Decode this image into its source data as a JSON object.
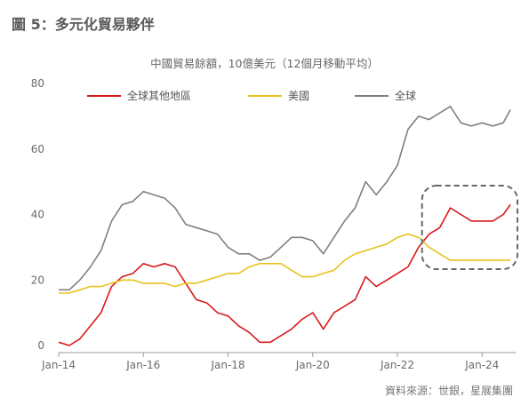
{
  "figure_title": "圖 5：多元化貿易夥伴",
  "source_note": "資料來源：世銀，星展集團",
  "chart_data": {
    "type": "line",
    "title": "中國貿易餘額，10億美元（12個月移動平均）",
    "xlabel": "",
    "ylabel": "",
    "ylim": [
      0,
      80
    ],
    "yticks": [
      0,
      20,
      40,
      60,
      80
    ],
    "xlim": [
      "2014-01",
      "2024-09"
    ],
    "xticks": [
      "Jan-14",
      "Jan-16",
      "Jan-18",
      "Jan-20",
      "Jan-22",
      "Jan-24"
    ],
    "grid": false,
    "legend_position": "top-left",
    "annotation": "dashed rounded box highlighting 2022-11 to 2024-09",
    "x": [
      "2014-01",
      "2014-04",
      "2014-07",
      "2014-10",
      "2015-01",
      "2015-04",
      "2015-07",
      "2015-10",
      "2016-01",
      "2016-04",
      "2016-07",
      "2016-10",
      "2017-01",
      "2017-04",
      "2017-07",
      "2017-10",
      "2018-01",
      "2018-04",
      "2018-07",
      "2018-10",
      "2019-01",
      "2019-04",
      "2019-07",
      "2019-10",
      "2020-01",
      "2020-04",
      "2020-07",
      "2020-10",
      "2021-01",
      "2021-04",
      "2021-07",
      "2021-10",
      "2022-01",
      "2022-04",
      "2022-07",
      "2022-10",
      "2023-01",
      "2023-04",
      "2023-07",
      "2023-10",
      "2024-01",
      "2024-04",
      "2024-07",
      "2024-09"
    ],
    "series": [
      {
        "name": "全球其他地區",
        "color": "#d7191c",
        "values": [
          1,
          0,
          2,
          6,
          10,
          18,
          21,
          22,
          25,
          24,
          25,
          24,
          19,
          14,
          13,
          10,
          9,
          6,
          4,
          1,
          1,
          3,
          5,
          8,
          10,
          5,
          10,
          12,
          14,
          21,
          18,
          20,
          22,
          24,
          30,
          34,
          36,
          42,
          40,
          38,
          38,
          38,
          40,
          43
        ]
      },
      {
        "name": "美國",
        "color": "#e8c21e",
        "values": [
          16,
          16,
          17,
          18,
          18,
          19,
          20,
          20,
          19,
          19,
          19,
          18,
          19,
          19,
          20,
          21,
          22,
          22,
          24,
          25,
          25,
          25,
          23,
          21,
          21,
          22,
          23,
          26,
          28,
          29,
          30,
          31,
          33,
          34,
          33,
          30,
          28,
          26,
          26,
          26,
          26,
          26,
          26,
          26
        ]
      },
      {
        "name": "全球",
        "color": "#7f7f7f",
        "values": [
          17,
          17,
          20,
          24,
          29,
          38,
          43,
          44,
          47,
          46,
          45,
          42,
          37,
          36,
          35,
          34,
          30,
          28,
          28,
          26,
          27,
          30,
          33,
          33,
          32,
          28,
          33,
          38,
          42,
          50,
          46,
          50,
          55,
          66,
          70,
          69,
          71,
          73,
          68,
          67,
          68,
          67,
          68,
          72
        ]
      }
    ]
  }
}
